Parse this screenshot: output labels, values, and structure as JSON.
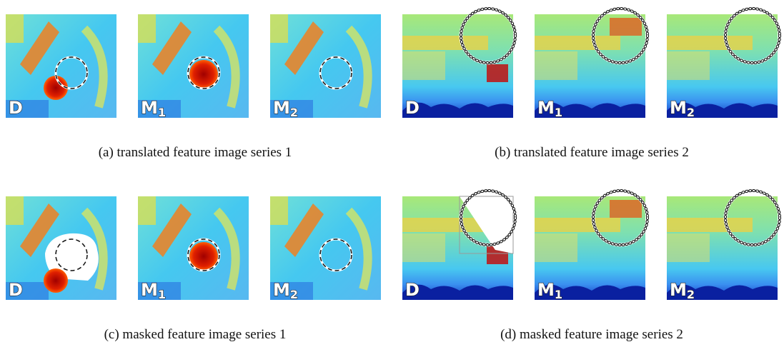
{
  "panels": [
    {
      "caption": "(a) translated feature image series 1",
      "images": [
        {
          "letter": "D",
          "sub": null
        },
        {
          "letter": "M",
          "sub": "1"
        },
        {
          "letter": "M",
          "sub": "2"
        }
      ]
    },
    {
      "caption": "(b) translated feature image series 2",
      "images": [
        {
          "letter": "D",
          "sub": null
        },
        {
          "letter": "M",
          "sub": "1"
        },
        {
          "letter": "M",
          "sub": "2"
        }
      ]
    },
    {
      "caption": "(c) masked feature image series 1",
      "images": [
        {
          "letter": "D",
          "sub": null
        },
        {
          "letter": "M",
          "sub": "1"
        },
        {
          "letter": "M",
          "sub": "2"
        }
      ]
    },
    {
      "caption": "(d) masked feature image series 2",
      "images": [
        {
          "letter": "D",
          "sub": null
        },
        {
          "letter": "M",
          "sub": "1"
        },
        {
          "letter": "M",
          "sub": "2"
        }
      ]
    }
  ]
}
